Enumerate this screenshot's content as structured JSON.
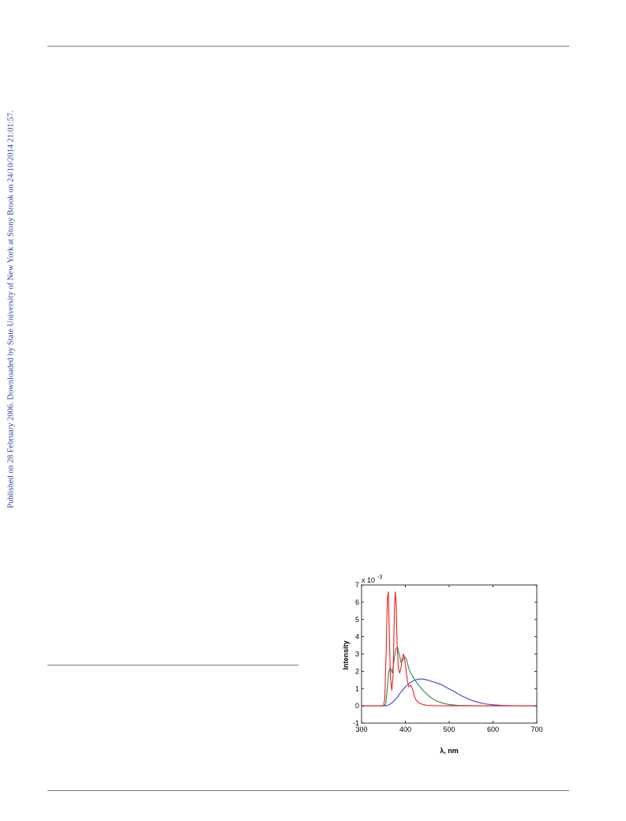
{
  "side_note": "Published on 28 February 2006. Downloaded by State University of New York at Stony Brook on 24/10/2014 21:01:57.",
  "colors": {
    "blue": "#3a46c2",
    "green": "#2e8b4e",
    "red": "#ee2020",
    "side_text": "#2b3f9e"
  },
  "chart_data": {
    "type": "line",
    "xlabel": "λ, nm",
    "ylabel": "Intensity",
    "xlim": [
      300,
      700
    ],
    "ylim": [
      -1,
      7
    ],
    "y_multiplier": {
      "base": "x 10",
      "exponent": "-3"
    },
    "xticks": [
      300,
      400,
      500,
      600,
      700
    ],
    "yticks": [
      -1,
      0,
      1,
      2,
      3,
      4,
      5,
      6,
      7
    ],
    "grid": false,
    "series": [
      {
        "color": "#3a46c2",
        "x": [
          300,
          350,
          356,
          362,
          370,
          380,
          390,
          400,
          410,
          420,
          430,
          440,
          450,
          460,
          470,
          480,
          490,
          500,
          510,
          520,
          530,
          540,
          550,
          560,
          570,
          580,
          600,
          620,
          640,
          660,
          700
        ],
        "y": [
          0,
          0,
          0,
          0.05,
          0.18,
          0.45,
          0.8,
          1.1,
          1.33,
          1.48,
          1.55,
          1.55,
          1.5,
          1.42,
          1.34,
          1.25,
          1.12,
          0.98,
          0.85,
          0.7,
          0.56,
          0.44,
          0.33,
          0.25,
          0.18,
          0.12,
          0.06,
          0.03,
          0.01,
          0,
          0
        ]
      },
      {
        "color": "#2e8b4e",
        "x": [
          300,
          350,
          355,
          358,
          362,
          366,
          370,
          374,
          378,
          382,
          386,
          390,
          394,
          398,
          402,
          406,
          410,
          420,
          430,
          440,
          450,
          460,
          470,
          480,
          490,
          500,
          520,
          560,
          700
        ],
        "y": [
          0,
          0,
          0.1,
          0.8,
          2.0,
          2.2,
          1.9,
          2.6,
          3.3,
          3.4,
          3.0,
          2.5,
          2.65,
          2.85,
          2.75,
          2.35,
          2.0,
          1.55,
          1.2,
          0.9,
          0.65,
          0.45,
          0.3,
          0.2,
          0.13,
          0.08,
          0.03,
          0.0,
          0
        ]
      },
      {
        "color": "#ee2020",
        "x": [
          300,
          350,
          353,
          356,
          359,
          361,
          363,
          366,
          369,
          372,
          375,
          377,
          379,
          381,
          384,
          387,
          390,
          393,
          396,
          399,
          402,
          405,
          408,
          412,
          416,
          420,
          424,
          430,
          440,
          450,
          470,
          500,
          700
        ],
        "y": [
          0,
          0,
          0.4,
          3.0,
          6.2,
          6.6,
          4.5,
          1.6,
          0.9,
          1.8,
          5.5,
          6.6,
          6.0,
          3.6,
          2.2,
          1.9,
          2.2,
          2.8,
          3.0,
          2.6,
          2.0,
          1.4,
          1.1,
          1.2,
          1.0,
          0.6,
          0.35,
          0.18,
          0.08,
          0.03,
          0.01,
          0,
          0
        ]
      }
    ]
  }
}
